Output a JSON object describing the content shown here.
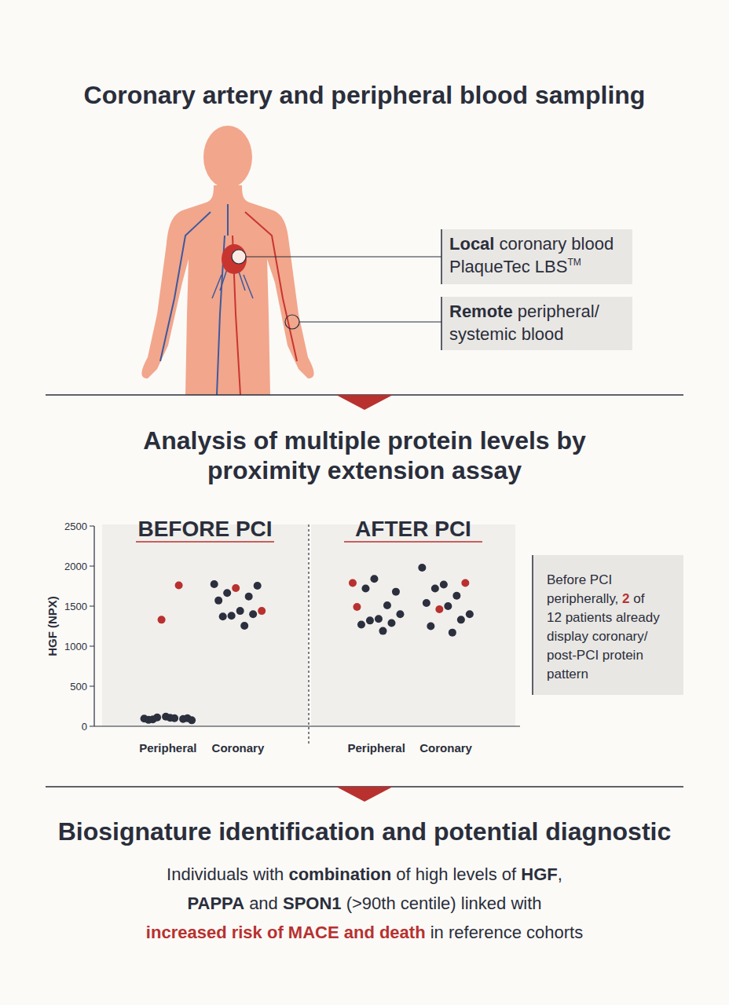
{
  "header": {
    "title": "Coronary artery and peripheral blood sampling",
    "labels": [
      {
        "lines": [
          [
            {
              "text": "Local",
              "bold": true
            },
            {
              "text": " coronary blood"
            }
          ],
          [
            {
              "text": "PlaqueTec LBS"
            },
            {
              "text": "TM",
              "sup": true
            }
          ]
        ]
      },
      {
        "lines": [
          [
            {
              "text": "Remote",
              "bold": true
            },
            {
              "text": " peripheral/"
            }
          ],
          [
            {
              "text": "systemic blood"
            }
          ]
        ]
      }
    ]
  },
  "analysis": {
    "title_lines": [
      "Analysis of multiple protein levels by",
      "proximity extension assay"
    ],
    "annotation": {
      "lines": [
        [
          {
            "text": "Before PCI"
          }
        ],
        [
          {
            "text": "peripherally, "
          },
          {
            "text": "2",
            "bold": true,
            "color": "#b8312f"
          },
          {
            "text": " of"
          }
        ],
        [
          {
            "text": "12 patients already"
          }
        ],
        [
          {
            "text": "display coronary/"
          }
        ],
        [
          {
            "text": "post-PCI protein"
          }
        ],
        [
          {
            "text": "pattern"
          }
        ]
      ]
    }
  },
  "chart_data": {
    "type": "scatter",
    "y_label": "HGF (NPX)",
    "ylim": [
      0,
      2500
    ],
    "yticks": [
      0,
      500,
      1000,
      1500,
      2000,
      2500
    ],
    "panels": [
      {
        "title": "BEFORE PCI",
        "groups": [
          {
            "category": "Peripheral",
            "values": [
              95,
              120,
              100,
              110,
              1760,
              80,
              105,
              75,
              1330,
              90,
              85,
              100
            ],
            "colors": [
              "#2b2f3e",
              "#2b2f3e",
              "#2b2f3e",
              "#2b2f3e",
              "#b8312f",
              "#2b2f3e",
              "#2b2f3e",
              "#2b2f3e",
              "#b8312f",
              "#2b2f3e",
              "#2b2f3e",
              "#2b2f3e"
            ]
          },
          {
            "category": "Coronary",
            "values": [
              1775,
              1725,
              1755,
              1665,
              1620,
              1570,
              1440,
              1440,
              1380,
              1400,
              1370,
              1255
            ],
            "colors": [
              "#2b2f3e",
              "#b8312f",
              "#2b2f3e",
              "#2b2f3e",
              "#2b2f3e",
              "#2b2f3e",
              "#2b2f3e",
              "#b8312f",
              "#2b2f3e",
              "#2b2f3e",
              "#2b2f3e",
              "#2b2f3e"
            ]
          }
        ]
      },
      {
        "title": "AFTER PCI",
        "groups": [
          {
            "category": "Peripheral",
            "values": [
              1790,
              1840,
              1680,
              1720,
              1510,
              1490,
              1340,
              1400,
              1320,
              1290,
              1270,
              1190
            ],
            "colors": [
              "#b8312f",
              "#2b2f3e",
              "#2b2f3e",
              "#2b2f3e",
              "#2b2f3e",
              "#b8312f",
              "#2b2f3e",
              "#2b2f3e",
              "#2b2f3e",
              "#2b2f3e",
              "#2b2f3e",
              "#2b2f3e"
            ]
          },
          {
            "category": "Coronary",
            "values": [
              1980,
              1770,
              1790,
              1720,
              1630,
              1540,
              1500,
              1400,
              1460,
              1330,
              1250,
              1170
            ],
            "colors": [
              "#2b2f3e",
              "#2b2f3e",
              "#b8312f",
              "#2b2f3e",
              "#2b2f3e",
              "#2b2f3e",
              "#2b2f3e",
              "#2b2f3e",
              "#b8312f",
              "#2b2f3e",
              "#2b2f3e",
              "#2b2f3e"
            ]
          }
        ]
      }
    ]
  },
  "biosignature": {
    "title": "Biosignature identification and potential diagnostic",
    "lines": [
      [
        {
          "text": "Individuals with "
        },
        {
          "text": "combination",
          "bold": true
        },
        {
          "text": " of high levels of "
        },
        {
          "text": "HGF",
          "bold": true
        },
        {
          "text": ","
        }
      ],
      [
        {
          "text": "PAPPA",
          "bold": true
        },
        {
          "text": " and "
        },
        {
          "text": "SPON1",
          "bold": true
        },
        {
          "text": " (>90th centile) linked with"
        }
      ],
      [
        {
          "text": "increased risk of MACE and death",
          "bold": true,
          "color": "#b8312f"
        },
        {
          "text": " in reference cohorts"
        }
      ]
    ]
  }
}
